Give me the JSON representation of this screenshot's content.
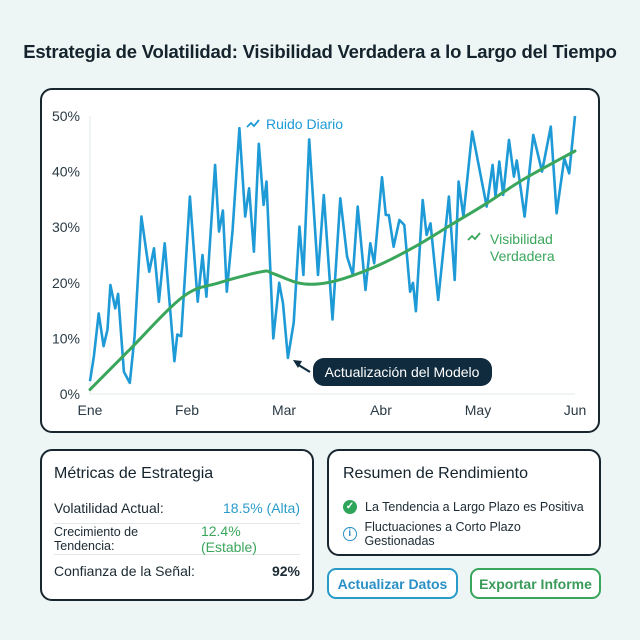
{
  "title": "Estrategia de Volatilidad: Visibilidad Verdadera a lo Largo del Tiempo",
  "colors": {
    "noise": "#1e9ad6",
    "trend": "#3aa65c",
    "annotation_bg": "#0f2b3d",
    "border": "#17252e"
  },
  "chart_data": {
    "type": "line",
    "x_categories": [
      "Ene",
      "Feb",
      "Mar",
      "Abr",
      "May",
      "Jun"
    ],
    "y_ticks": [
      "0%",
      "10%",
      "20%",
      "30%",
      "40%",
      "50%"
    ],
    "ylim": [
      0,
      50
    ],
    "grid": false,
    "series": [
      {
        "name": "Ruido Diario",
        "icon": "trend-line-icon",
        "points": [
          [
            0,
            2.3
          ],
          [
            0.04,
            6.8
          ],
          [
            0.09,
            14.5
          ],
          [
            0.14,
            8.6
          ],
          [
            0.18,
            11.6
          ],
          [
            0.21,
            19.6
          ],
          [
            0.26,
            15.4
          ],
          [
            0.29,
            18
          ],
          [
            0.35,
            4
          ],
          [
            0.41,
            2
          ],
          [
            0.46,
            10.4
          ],
          [
            0.53,
            31.9
          ],
          [
            0.61,
            22
          ],
          [
            0.66,
            26.2
          ],
          [
            0.71,
            16.6
          ],
          [
            0.77,
            27.1
          ],
          [
            0.87,
            5.9
          ],
          [
            0.9,
            10.7
          ],
          [
            0.94,
            10.4
          ],
          [
            1.03,
            35.5
          ],
          [
            1.11,
            16.6
          ],
          [
            1.16,
            25
          ],
          [
            1.2,
            17.5
          ],
          [
            1.29,
            41.2
          ],
          [
            1.33,
            29.2
          ],
          [
            1.37,
            33
          ],
          [
            1.41,
            18.4
          ],
          [
            1.47,
            29.5
          ],
          [
            1.54,
            47.8
          ],
          [
            1.6,
            31.9
          ],
          [
            1.64,
            37
          ],
          [
            1.69,
            25.6
          ],
          [
            1.74,
            45
          ],
          [
            1.79,
            34
          ],
          [
            1.82,
            38.2
          ],
          [
            1.89,
            10
          ],
          [
            1.95,
            20
          ],
          [
            1.99,
            16.3
          ],
          [
            2.04,
            6.5
          ],
          [
            2.1,
            12.8
          ],
          [
            2.16,
            30.1
          ],
          [
            2.2,
            21.4
          ],
          [
            2.26,
            45.8
          ],
          [
            2.35,
            21.4
          ],
          [
            2.41,
            35.8
          ],
          [
            2.5,
            13.4
          ],
          [
            2.58,
            35.2
          ],
          [
            2.65,
            24.7
          ],
          [
            2.71,
            21.4
          ],
          [
            2.76,
            33.7
          ],
          [
            2.84,
            18.7
          ],
          [
            2.89,
            27.1
          ],
          [
            2.93,
            23.5
          ],
          [
            3.01,
            39
          ],
          [
            3.05,
            32.2
          ],
          [
            3.08,
            32.2
          ],
          [
            3.13,
            26.5
          ],
          [
            3.19,
            31.3
          ],
          [
            3.24,
            30.4
          ],
          [
            3.3,
            18.4
          ],
          [
            3.33,
            20
          ],
          [
            3.36,
            14.9
          ],
          [
            3.43,
            34.9
          ],
          [
            3.47,
            28.6
          ],
          [
            3.51,
            30.7
          ],
          [
            3.59,
            16.9
          ],
          [
            3.7,
            35.5
          ],
          [
            3.76,
            20.5
          ],
          [
            3.8,
            38.2
          ],
          [
            3.85,
            31.9
          ],
          [
            3.94,
            47.2
          ],
          [
            4.09,
            33.7
          ],
          [
            4.15,
            41.2
          ],
          [
            4.18,
            35.5
          ],
          [
            4.22,
            41.8
          ],
          [
            4.26,
            35.8
          ],
          [
            4.32,
            45.7
          ],
          [
            4.37,
            39.1
          ],
          [
            4.4,
            42
          ],
          [
            4.48,
            31.9
          ],
          [
            4.57,
            46.6
          ],
          [
            4.66,
            40
          ],
          [
            4.75,
            48.1
          ],
          [
            4.81,
            32.5
          ],
          [
            4.89,
            42.4
          ],
          [
            4.94,
            39.7
          ],
          [
            5,
            50
          ]
        ]
      },
      {
        "name": "Visibilidad Verdadera",
        "icon": "trend-line-icon",
        "points": [
          [
            0,
            0.8
          ],
          [
            0.41,
            8
          ],
          [
            0.96,
            17.5
          ],
          [
            1.33,
            20
          ],
          [
            1.77,
            22
          ],
          [
            1.88,
            21.7
          ],
          [
            2.14,
            20
          ],
          [
            2.36,
            19.8
          ],
          [
            2.62,
            20.8
          ],
          [
            2.98,
            23.2
          ],
          [
            3.35,
            26.5
          ],
          [
            3.72,
            30.4
          ],
          [
            4.09,
            34.3
          ],
          [
            4.46,
            38.5
          ],
          [
            5,
            43.7
          ]
        ]
      }
    ],
    "series_labels": {
      "noise": "Ruido Diario",
      "trend_line1": "Visibilidad",
      "trend_line2": "Verdadera"
    },
    "annotation": {
      "text": "Actualización del Modelo",
      "target": [
        2.04,
        6.5
      ]
    }
  },
  "metrics": {
    "title": "Métricas de Estrategia",
    "rows": [
      {
        "label": "Volatilidad Actual:",
        "value": "18.5% (Alta)"
      },
      {
        "label": "Crecimiento de Tendencia:",
        "value": "12.4% (Estable)"
      },
      {
        "label": "Confianza de la Señal:",
        "value": "92%"
      }
    ]
  },
  "summary": {
    "title": "Resumen de Rendimiento",
    "items": [
      {
        "text": "La Tendencia a Largo Plazo es Positiva",
        "icon": "check-circle-icon"
      },
      {
        "text": "Fluctuaciones a Corto Plazo Gestionadas",
        "icon": "info-circle-icon"
      }
    ]
  },
  "buttons": {
    "refresh": "Actualizar Datos",
    "export": "Exportar Informe"
  }
}
